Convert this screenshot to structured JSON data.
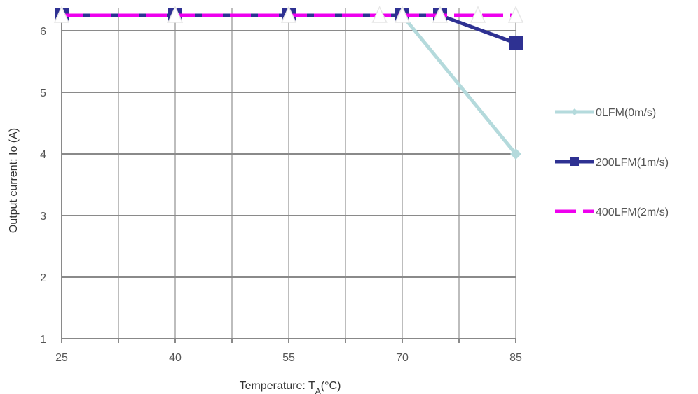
{
  "chart_data": {
    "type": "line",
    "xlabel": "Temperature: TA(°C)",
    "xlabel_main": "Temperature: T",
    "xlabel_sub": "A",
    "xlabel_tail": "(°C)",
    "ylabel": "Output current: Io (A)",
    "xlim": [
      25,
      85
    ],
    "ylim": [
      1,
      6.25
    ],
    "x_ticks": [
      25,
      40,
      55,
      70,
      85
    ],
    "y_ticks": [
      1,
      2,
      3,
      4,
      5,
      6
    ],
    "x_minor_ticks": [
      32.5,
      47.5,
      62.5,
      77.5
    ],
    "grid": true,
    "legend_position": "right",
    "series": [
      {
        "name": "0LFM(0m/s)",
        "color": "#b4dadc",
        "marker": "diamond",
        "dash": "solid",
        "x": [
          25,
          40,
          55,
          67,
          70,
          85
        ],
        "y": [
          6.25,
          6.25,
          6.25,
          6.25,
          6.25,
          4
        ]
      },
      {
        "name": "200LFM(1m/s)",
        "color": "#2e3192",
        "marker": "square",
        "dash": "solid",
        "x": [
          25,
          40,
          55,
          70,
          75,
          85
        ],
        "y": [
          6.25,
          6.25,
          6.25,
          6.25,
          6.25,
          5.8
        ]
      },
      {
        "name": "400LFM(2m/s)",
        "color": "#ee00ee",
        "marker": "triangle",
        "dash": "dashed",
        "x": [
          25,
          40,
          55,
          67,
          70,
          75,
          80,
          85
        ],
        "y": [
          6.25,
          6.25,
          6.25,
          6.25,
          6.25,
          6.25,
          6.25,
          6.25
        ]
      }
    ]
  }
}
